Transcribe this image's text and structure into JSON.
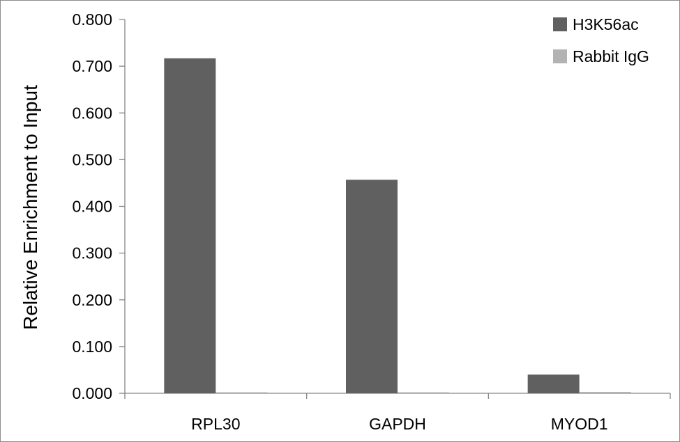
{
  "chart_data": {
    "type": "bar",
    "title": "",
    "xlabel": "",
    "ylabel": "Relative Enrichment to Input",
    "categories": [
      "RPL30",
      "GAPDH",
      "MYOD1"
    ],
    "series": [
      {
        "name": "H3K56ac",
        "color": "#606060",
        "values": [
          0.717,
          0.457,
          0.04
        ]
      },
      {
        "name": "Rabbit IgG",
        "color": "#b3b3b3",
        "values": [
          0.002,
          0.0,
          0.003
        ]
      }
    ],
    "ylim": [
      0,
      0.8
    ],
    "yticks": [
      0.0,
      0.1,
      0.2,
      0.3,
      0.4,
      0.5,
      0.6,
      0.7,
      0.8
    ],
    "ytick_labels": [
      "0.000",
      "0.100",
      "0.200",
      "0.300",
      "0.400",
      "0.500",
      "0.600",
      "0.700",
      "0.800"
    ],
    "grid": false,
    "legend_position": "top-right"
  }
}
